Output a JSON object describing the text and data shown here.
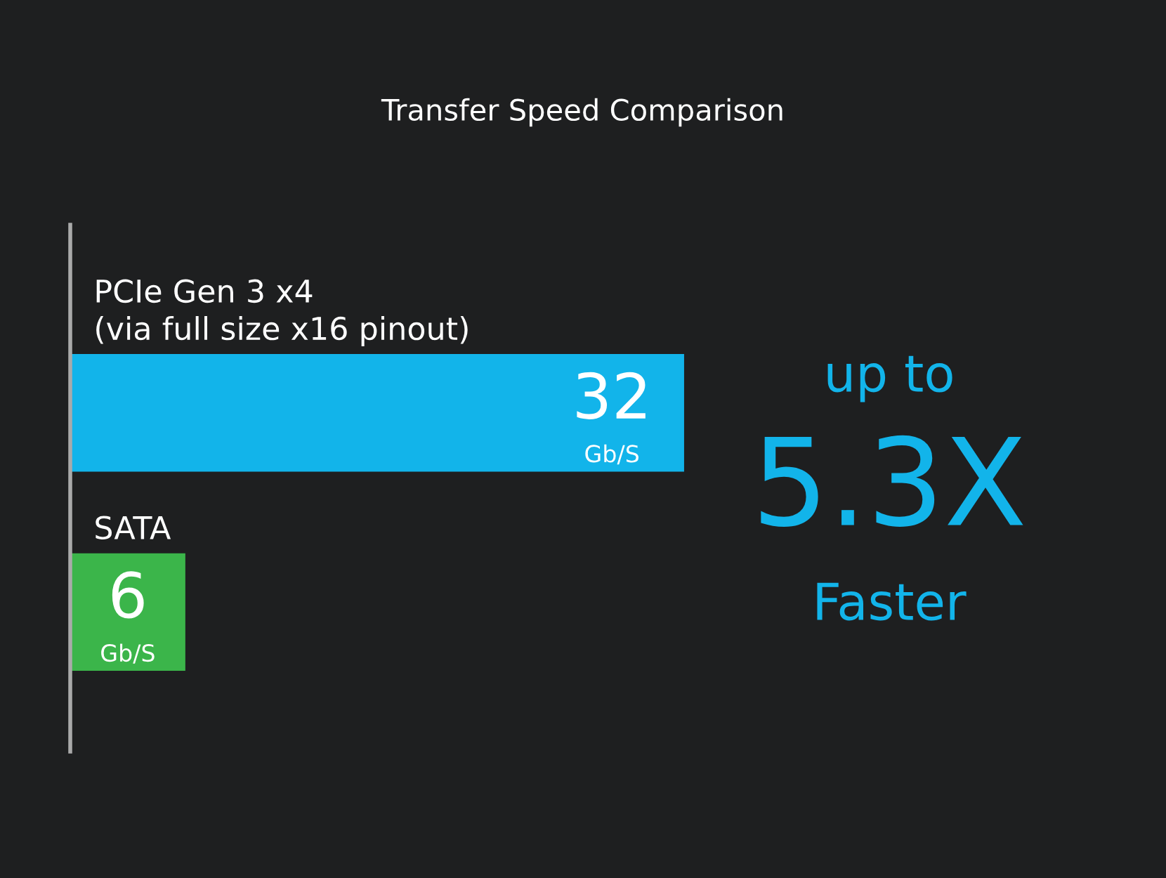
{
  "chart_data": {
    "type": "bar",
    "orientation": "horizontal",
    "title": "Transfer Speed Comparison",
    "categories": [
      "PCIe Gen 3 x4\n(via full size x16 pinout)",
      "SATA"
    ],
    "values": [
      32,
      6
    ],
    "colors": [
      "#12b4ea",
      "#3bb54a"
    ],
    "value_labels": [
      "32\nGb/S",
      "6\nGb/S"
    ],
    "annotations": [
      "up to\n5.3X\nFaster"
    ],
    "legend": false
  }
}
